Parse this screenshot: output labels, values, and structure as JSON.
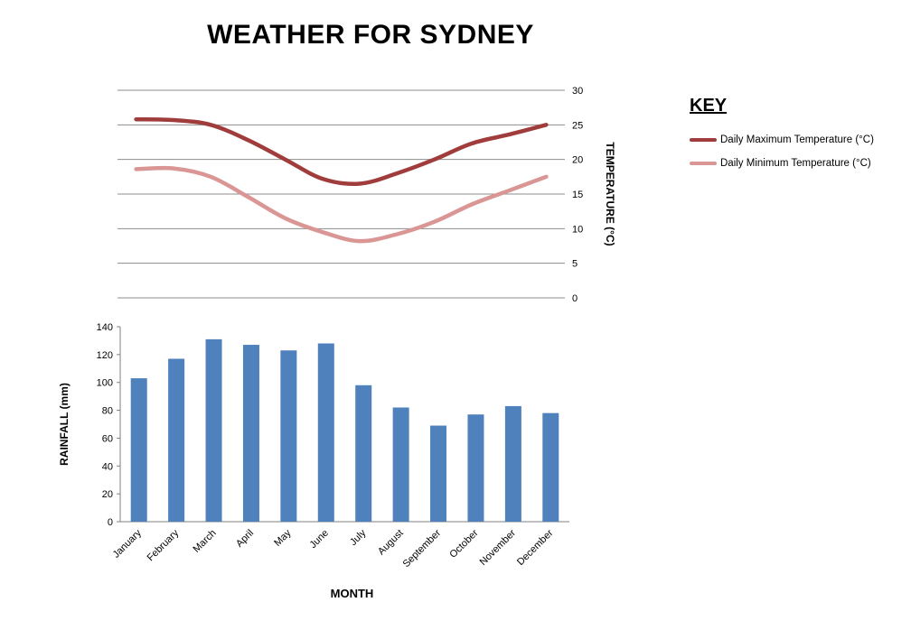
{
  "title": "WEATHER FOR SYDNEY",
  "key": {
    "heading": "KEY",
    "items": [
      {
        "label": "Daily Maximum Temperature (°C)",
        "color": "#A03C3C"
      },
      {
        "label": "Daily Minimum Temperature (°C)",
        "color": "#D99694"
      }
    ]
  },
  "chart_data": [
    {
      "type": "line",
      "title": "WEATHER FOR SYDNEY",
      "categories": [
        "January",
        "February",
        "March",
        "April",
        "May",
        "June",
        "July",
        "August",
        "September",
        "October",
        "November",
        "December"
      ],
      "series": [
        {
          "name": "Daily Maximum Temperature (°C)",
          "color": "#A03C3C",
          "values": [
            25.8,
            25.7,
            25.0,
            22.8,
            20.0,
            17.2,
            16.5,
            18.0,
            20.0,
            22.3,
            23.6,
            25.0
          ]
        },
        {
          "name": "Daily Minimum Temperature (°C)",
          "color": "#D99694",
          "values": [
            18.6,
            18.7,
            17.5,
            14.6,
            11.5,
            9.5,
            8.2,
            9.2,
            11.0,
            13.5,
            15.5,
            17.5
          ]
        }
      ],
      "ylabel": "TEMPERATURE (°C)",
      "ylim": [
        0,
        30
      ],
      "yticks": [
        0,
        5,
        10,
        15,
        20,
        25,
        30
      ],
      "grid": true,
      "axis_side": "right",
      "legend_position": "right"
    },
    {
      "type": "bar",
      "categories": [
        "January",
        "February",
        "March",
        "April",
        "May",
        "June",
        "July",
        "August",
        "September",
        "October",
        "November",
        "December"
      ],
      "values": [
        103,
        117,
        131,
        127,
        123,
        128,
        98,
        82,
        69,
        77,
        83,
        78
      ],
      "ylabel": "RAINFALL (mm)",
      "xlabel": "MONTH",
      "ylim": [
        0,
        140
      ],
      "yticks": [
        0,
        20,
        40,
        60,
        80,
        100,
        120,
        140
      ],
      "grid": false,
      "bar_color": "#4F81BD"
    }
  ]
}
